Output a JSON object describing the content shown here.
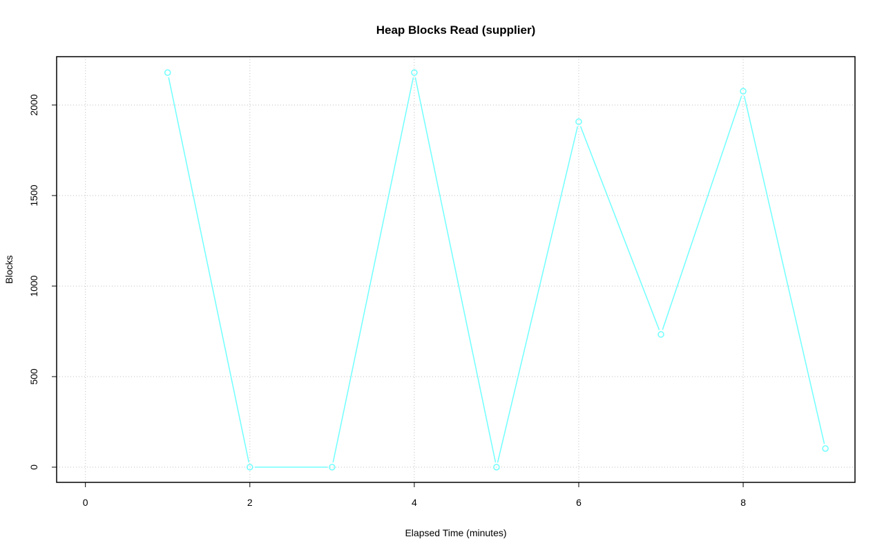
{
  "chart_data": {
    "type": "line",
    "title": "Heap Blocks Read (supplier)",
    "xlabel": "Elapsed Time (minutes)",
    "ylabel": "Blocks",
    "xlim": [
      -0.35,
      9.36
    ],
    "ylim": [
      -84,
      2267
    ],
    "xticks": [
      0,
      2,
      4,
      6,
      8
    ],
    "yticks": [
      0,
      500,
      1000,
      1500,
      2000
    ],
    "grid": true,
    "line_style": "points-and-lines",
    "marker": "open-circle",
    "color": "#70ffff",
    "grid_color": "#bebebe",
    "series": [
      {
        "x": [
          1,
          2,
          3,
          4,
          5,
          6,
          7,
          8,
          9
        ],
        "y": [
          2179,
          0,
          0,
          2179,
          0,
          1908,
          733,
          2076,
          103
        ]
      }
    ]
  }
}
